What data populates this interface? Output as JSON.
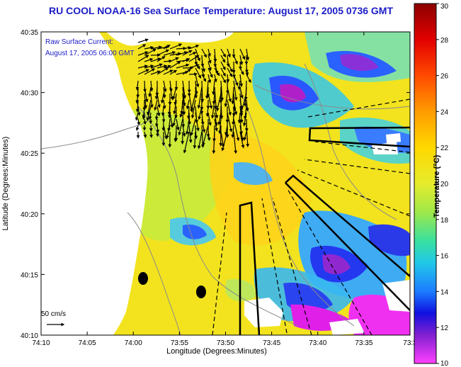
{
  "title": "RU COOL  NOAA-16  Sea Surface Temperature:  August 17, 2005 0736 GMT",
  "legend": {
    "line1": "Raw Surface Current:",
    "line2": "August 17, 2005 06:00 GMT"
  },
  "scale_label": "50 cm/s",
  "axes": {
    "xlabel": "Longitude (Degrees:Minutes)",
    "ylabel": "Latitude (Degrees:Minutes)",
    "x_ticks": [
      "74:10",
      "74:05",
      "74:00",
      "73:55",
      "73:50",
      "73:45",
      "73:40",
      "73:35",
      "73:3"
    ],
    "y_ticks": [
      "40:35",
      "40:30",
      "40:25",
      "40:20",
      "40:15",
      "40:10"
    ]
  },
  "colorbar": {
    "label": "Temperature (°C)",
    "ticks": [
      "30",
      "28",
      "26",
      "24",
      "22",
      "20",
      "18",
      "16",
      "14",
      "12",
      "10"
    ],
    "min": 10,
    "max": 30
  },
  "colors": {
    "title": "#1c1cc8",
    "land": "#ffffff",
    "warm": "#f0dc1e",
    "cool": "#2b6cff",
    "cold": "#ff00ff"
  }
}
